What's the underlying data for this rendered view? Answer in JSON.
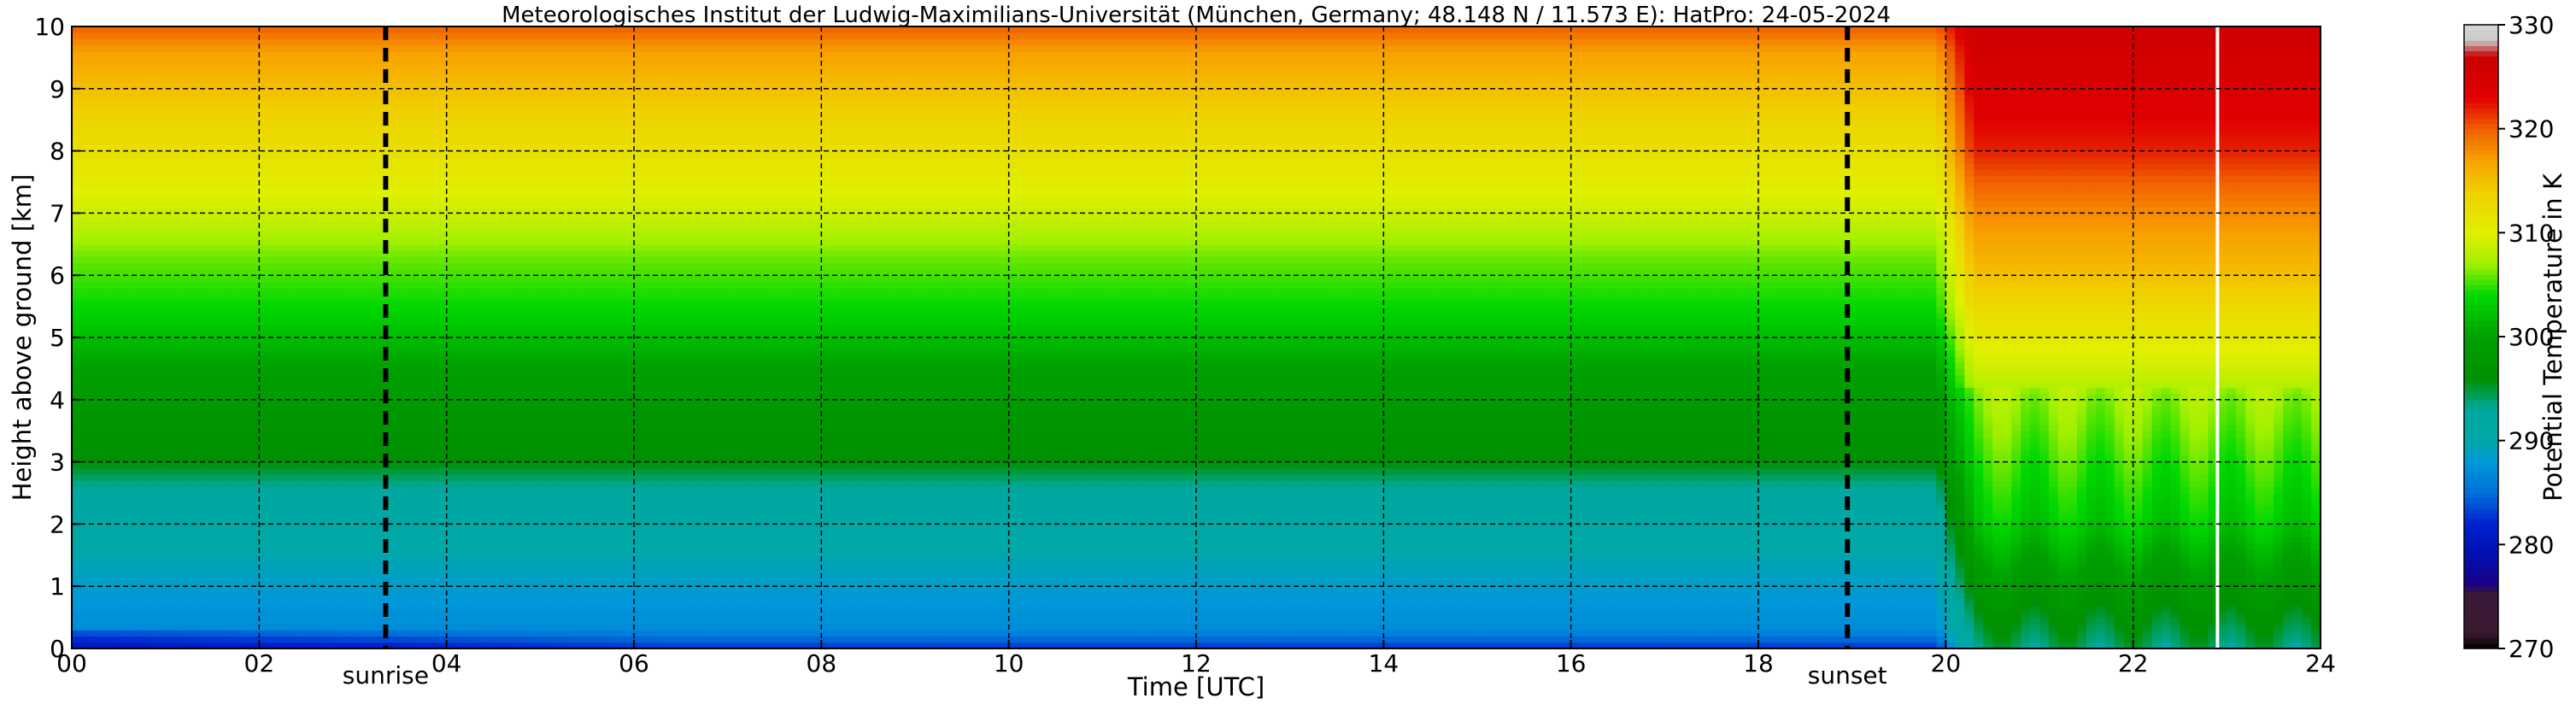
{
  "chart_data": {
    "type": "heatmap",
    "title": "Meteorologisches Institut der Ludwig-Maximilians-Universität (München, Germany; 48.148 N / 11.573 E):    HatPro: 24-05-2024",
    "xlabel": "Time [UTC]",
    "ylabel": "Height above ground [km]",
    "xlim": [
      0,
      24
    ],
    "ylim": [
      0,
      10
    ],
    "x_ticks": [
      "00",
      "02",
      "04",
      "06",
      "08",
      "10",
      "12",
      "14",
      "16",
      "18",
      "20",
      "22",
      "24"
    ],
    "y_ticks": [
      "0",
      "1",
      "2",
      "3",
      "4",
      "5",
      "6",
      "7",
      "8",
      "9",
      "10"
    ],
    "grid": true,
    "colorbar": {
      "label": "Potential Temperature in K",
      "range": [
        270,
        330
      ],
      "ticks": [
        "270",
        "280",
        "290",
        "300",
        "310",
        "320",
        "330"
      ],
      "stops": [
        {
          "value": 270,
          "color": "#000000"
        },
        {
          "value": 271.5,
          "color": "#3a1a30"
        },
        {
          "value": 275.5,
          "color": "#3a1a3a"
        },
        {
          "value": 276,
          "color": "#1a0080"
        },
        {
          "value": 279,
          "color": "#0010b0"
        },
        {
          "value": 282,
          "color": "#0020d0"
        },
        {
          "value": 285,
          "color": "#0070d8"
        },
        {
          "value": 288,
          "color": "#0098d8"
        },
        {
          "value": 290,
          "color": "#00a8a8"
        },
        {
          "value": 293,
          "color": "#00a8a0"
        },
        {
          "value": 296,
          "color": "#009000"
        },
        {
          "value": 300,
          "color": "#00a000"
        },
        {
          "value": 304,
          "color": "#00d800"
        },
        {
          "value": 307,
          "color": "#a0f000"
        },
        {
          "value": 310,
          "color": "#e0f000"
        },
        {
          "value": 314,
          "color": "#f0d000"
        },
        {
          "value": 317,
          "color": "#f8a000"
        },
        {
          "value": 320,
          "color": "#f06000"
        },
        {
          "value": 323,
          "color": "#e00000"
        },
        {
          "value": 327,
          "color": "#c80000"
        },
        {
          "value": 328.5,
          "color": "#c8c8c8"
        },
        {
          "value": 330,
          "color": "#d8d8d8"
        }
      ]
    },
    "vertical_markers": [
      {
        "label": "sunrise",
        "x": 3.35
      },
      {
        "label": "sunset",
        "x": 18.95
      }
    ],
    "white_gap_x": 22.9,
    "profiles": {
      "day": {
        "heights": [
          0,
          0.3,
          1.0,
          2.0,
          2.6,
          3.0,
          3.5,
          4.5,
          5.5,
          6.3,
          7.0,
          8.0,
          9.0,
          9.6,
          10.0
        ],
        "theta": [
          282.5,
          287,
          288.5,
          291,
          293,
          296,
          297,
          300,
          304,
          306,
          309,
          312,
          315,
          317,
          320
        ]
      },
      "night": {
        "heights": [
          0,
          0.5,
          2.0,
          3.0,
          4.0,
          5.0,
          6.0,
          7.0,
          8.0,
          9.0,
          10.0
        ],
        "theta": [
          294,
          296,
          303,
          305,
          307,
          311,
          315,
          318,
          322,
          324,
          326
        ]
      }
    }
  }
}
